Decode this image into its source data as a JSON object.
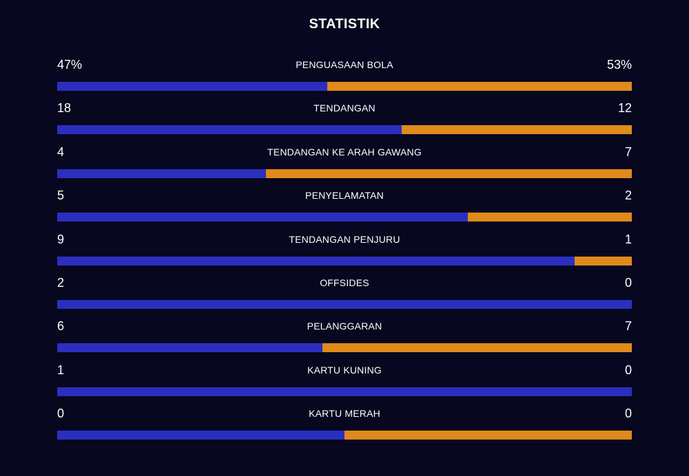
{
  "title": "STATISTIK",
  "colors": {
    "background": "#07071f",
    "home_bar": "#2b2fbf",
    "away_bar": "#e08a1b",
    "text": "#ffffff"
  },
  "stats": [
    {
      "label": "PENGUASAAN BOLA",
      "home": "47%",
      "away": "53%",
      "home_share": 0.47
    },
    {
      "label": "TENDANGAN",
      "home": "18",
      "away": "12",
      "home_share": 0.6
    },
    {
      "label": "TENDANGAN KE ARAH GAWANG",
      "home": "4",
      "away": "7",
      "home_share": 0.3636
    },
    {
      "label": "PENYELAMATAN",
      "home": "5",
      "away": "2",
      "home_share": 0.7143
    },
    {
      "label": "TENDANGAN PENJURU",
      "home": "9",
      "away": "1",
      "home_share": 0.9
    },
    {
      "label": "OFFSIDES",
      "home": "2",
      "away": "0",
      "home_share": 1.0
    },
    {
      "label": "PELANGGARAN",
      "home": "6",
      "away": "7",
      "home_share": 0.4615
    },
    {
      "label": "KARTU KUNING",
      "home": "1",
      "away": "0",
      "home_share": 1.0
    },
    {
      "label": "KARTU MERAH",
      "home": "0",
      "away": "0",
      "home_share": 0.5
    }
  ]
}
